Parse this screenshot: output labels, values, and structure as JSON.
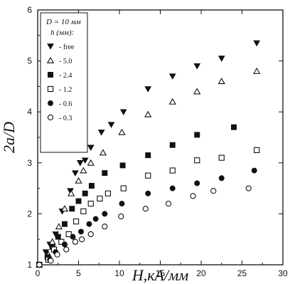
{
  "chart_data": {
    "type": "scatter",
    "title": "",
    "xlabel": "H,кА/мм",
    "ylabel": "2a/D",
    "xlim": [
      0,
      30
    ],
    "ylim": [
      1,
      6
    ],
    "xticks": [
      0,
      5,
      10,
      15,
      20,
      25,
      30
    ],
    "yticks": [
      1,
      2,
      3,
      4,
      5,
      6
    ],
    "grid": false,
    "legend": {
      "placement": "top-left",
      "header_line1": "D = 10 мм",
      "header_line2": "h (мм):"
    },
    "series": [
      {
        "name": "- free",
        "marker": "triangle-down-filled",
        "points": [
          [
            0.2,
            1.0
          ],
          [
            1.0,
            1.25
          ],
          [
            1.5,
            1.4
          ],
          [
            2.2,
            1.6
          ],
          [
            3.0,
            2.05
          ],
          [
            4.0,
            2.45
          ],
          [
            4.6,
            2.8
          ],
          [
            5.2,
            3.0
          ],
          [
            5.8,
            3.05
          ],
          [
            6.5,
            3.3
          ],
          [
            7.8,
            3.6
          ],
          [
            9.0,
            3.75
          ],
          [
            10.5,
            4.0
          ],
          [
            13.5,
            4.45
          ],
          [
            16.5,
            4.7
          ],
          [
            19.5,
            4.9
          ],
          [
            22.5,
            5.05
          ],
          [
            26.8,
            5.35
          ]
        ]
      },
      {
        "name": "- 5.0",
        "marker": "triangle-up-open",
        "points": [
          [
            0.2,
            1.0
          ],
          [
            1.3,
            1.2
          ],
          [
            1.8,
            1.45
          ],
          [
            2.6,
            1.75
          ],
          [
            3.3,
            2.1
          ],
          [
            4.1,
            2.4
          ],
          [
            5.0,
            2.65
          ],
          [
            5.6,
            2.85
          ],
          [
            6.5,
            3.0
          ],
          [
            8.0,
            3.2
          ],
          [
            10.3,
            3.6
          ],
          [
            13.5,
            3.95
          ],
          [
            16.5,
            4.2
          ],
          [
            19.5,
            4.4
          ],
          [
            22.5,
            4.6
          ],
          [
            26.8,
            4.8
          ]
        ]
      },
      {
        "name": "- 2.4",
        "marker": "square-filled",
        "points": [
          [
            0.2,
            1.0
          ],
          [
            1.2,
            1.15
          ],
          [
            1.8,
            1.35
          ],
          [
            2.5,
            1.55
          ],
          [
            3.3,
            1.8
          ],
          [
            4.2,
            2.1
          ],
          [
            5.0,
            2.25
          ],
          [
            5.8,
            2.4
          ],
          [
            6.6,
            2.55
          ],
          [
            8.2,
            2.8
          ],
          [
            10.4,
            2.95
          ],
          [
            13.5,
            3.15
          ],
          [
            16.5,
            3.35
          ],
          [
            19.5,
            3.55
          ],
          [
            24.0,
            3.7
          ]
        ]
      },
      {
        "name": "- 1.2",
        "marker": "square-open",
        "points": [
          [
            0.2,
            1.0
          ],
          [
            1.3,
            1.1
          ],
          [
            2.0,
            1.3
          ],
          [
            2.9,
            1.45
          ],
          [
            3.8,
            1.6
          ],
          [
            4.7,
            1.85
          ],
          [
            5.6,
            2.05
          ],
          [
            6.5,
            2.2
          ],
          [
            7.6,
            2.3
          ],
          [
            8.6,
            2.4
          ],
          [
            10.5,
            2.5
          ],
          [
            13.5,
            2.75
          ],
          [
            16.5,
            2.85
          ],
          [
            19.5,
            3.05
          ],
          [
            22.5,
            3.1
          ],
          [
            26.8,
            3.25
          ]
        ]
      },
      {
        "name": "- 0.6",
        "marker": "circle-filled",
        "points": [
          [
            0.2,
            1.0
          ],
          [
            1.5,
            1.1
          ],
          [
            2.2,
            1.25
          ],
          [
            3.3,
            1.4
          ],
          [
            4.3,
            1.55
          ],
          [
            5.3,
            1.65
          ],
          [
            6.3,
            1.8
          ],
          [
            7.1,
            1.9
          ],
          [
            8.2,
            2.0
          ],
          [
            10.3,
            2.2
          ],
          [
            13.5,
            2.4
          ],
          [
            16.5,
            2.5
          ],
          [
            19.5,
            2.6
          ],
          [
            22.5,
            2.7
          ],
          [
            26.5,
            2.85
          ]
        ]
      },
      {
        "name": "- 0.3",
        "marker": "circle-open",
        "points": [
          [
            0.2,
            1.0
          ],
          [
            1.6,
            1.08
          ],
          [
            2.4,
            1.2
          ],
          [
            3.5,
            1.3
          ],
          [
            4.6,
            1.45
          ],
          [
            5.4,
            1.5
          ],
          [
            6.5,
            1.6
          ],
          [
            8.2,
            1.75
          ],
          [
            10.2,
            1.95
          ],
          [
            13.2,
            2.1
          ],
          [
            16.0,
            2.2
          ],
          [
            19.0,
            2.35
          ],
          [
            21.5,
            2.45
          ],
          [
            25.8,
            2.5
          ]
        ]
      }
    ]
  }
}
